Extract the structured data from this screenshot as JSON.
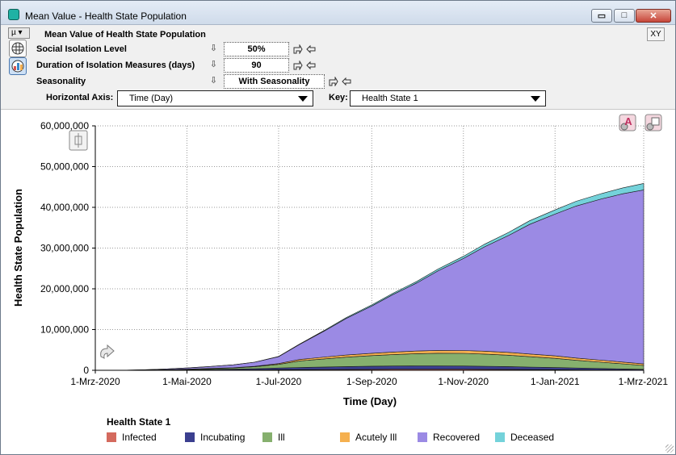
{
  "window": {
    "title": "Mean Value - Health State Population",
    "minimize_glyph": "▭",
    "maximize_glyph": "□",
    "close_glyph": "✕"
  },
  "controls": {
    "mu_label": "µ ▾",
    "title": "Mean Value of Health State Population",
    "xy_label": "XY",
    "down_arrow_glyph": "⇩",
    "rows": [
      {
        "label": "Social Isolation Level",
        "value": "50%"
      },
      {
        "label": "Duration of Isolation Measures   (days)",
        "value": "90"
      },
      {
        "label": "Seasonality",
        "value": "With Seasonality"
      }
    ],
    "horizontal_axis_label": "Horizontal Axis:",
    "horizontal_axis_value": "Time (Day)",
    "key_label": "Key:",
    "key_value": "Health State 1"
  },
  "icons": {
    "window": "app-icon",
    "table": "table-icon",
    "graph": "graph-icon",
    "row_mark": "pivot-icon",
    "row_swap": "swap-icon",
    "rotate": "rotate-icon",
    "chart_tools": "chart-settings-icon",
    "chart_copy": "chart-copy-icon",
    "axis_scroll": "axis-scroll-icon"
  },
  "chart_data": {
    "type": "area",
    "stacked": true,
    "xlabel": "Time (Day)",
    "ylabel": "Health State Population",
    "x_tick_labels": [
      "1-Mrz-2020",
      "1-Mai-2020",
      "1-Jul-2020",
      "1-Sep-2020",
      "1-Nov-2020",
      "1-Jan-2021",
      "1-Mrz-2021"
    ],
    "x_tick_dates": [
      "2020-03-01",
      "2020-05-01",
      "2020-07-01",
      "2020-09-01",
      "2020-11-01",
      "2021-01-01",
      "2021-03-01"
    ],
    "xlim": [
      "2020-03-01",
      "2021-03-01"
    ],
    "y_tick_labels": [
      "0",
      "10,000,000",
      "20,000,000",
      "30,000,000",
      "40,000,000",
      "50,000,000",
      "60,000,000"
    ],
    "ylim": [
      0,
      60000000
    ],
    "grid": true,
    "legend_title": "Health State 1",
    "legend_position": "bottom",
    "x": [
      "2020-03-01",
      "2020-03-15",
      "2020-04-01",
      "2020-04-15",
      "2020-05-01",
      "2020-05-15",
      "2020-06-01",
      "2020-06-15",
      "2020-07-01",
      "2020-07-15",
      "2020-08-01",
      "2020-08-15",
      "2020-09-01",
      "2020-09-15",
      "2020-10-01",
      "2020-10-15",
      "2020-11-01",
      "2020-11-15",
      "2020-12-01",
      "2020-12-15",
      "2021-01-01",
      "2021-01-15",
      "2021-02-01",
      "2021-02-15",
      "2021-03-01"
    ],
    "series": [
      {
        "name": "Infected",
        "color": "#d46a5e",
        "values": [
          0,
          0,
          10000,
          20000,
          40000,
          60000,
          80000,
          100000,
          150000,
          180000,
          200000,
          220000,
          240000,
          250000,
          260000,
          260000,
          250000,
          230000,
          210000,
          180000,
          150000,
          120000,
          90000,
          70000,
          50000
        ]
      },
      {
        "name": "Incubating",
        "color": "#3b3f8f",
        "values": [
          0,
          0,
          20000,
          50000,
          100000,
          150000,
          200000,
          280000,
          400000,
          520000,
          620000,
          700000,
          760000,
          800000,
          820000,
          820000,
          800000,
          760000,
          700000,
          620000,
          530000,
          430000,
          340000,
          260000,
          190000
        ]
      },
      {
        "name": "Ill",
        "color": "#86b06e",
        "values": [
          0,
          0,
          30000,
          60000,
          120000,
          200000,
          300000,
          500000,
          900000,
          1600000,
          2000000,
          2300000,
          2600000,
          2800000,
          3000000,
          3100000,
          3100000,
          3000000,
          2800000,
          2550000,
          2250000,
          1900000,
          1550000,
          1250000,
          950000
        ]
      },
      {
        "name": "Acutely Ill",
        "color": "#f5b04f",
        "values": [
          0,
          0,
          5000,
          10000,
          20000,
          40000,
          60000,
          100000,
          200000,
          350000,
          450000,
          520000,
          580000,
          620000,
          660000,
          690000,
          700000,
          700000,
          680000,
          650000,
          610000,
          560000,
          500000,
          440000,
          380000
        ]
      },
      {
        "name": "Recovered",
        "color": "#9b8ae4",
        "values": [
          0,
          0,
          50000,
          150000,
          300000,
          450000,
          700000,
          1000000,
          1700000,
          3700000,
          6500000,
          9000000,
          11600000,
          14100000,
          16700000,
          19500000,
          22600000,
          25600000,
          28700000,
          31800000,
          34800000,
          37300000,
          39600000,
          41300000,
          42700000
        ]
      },
      {
        "name": "Deceased",
        "color": "#74d2da",
        "values": [
          0,
          0,
          1000,
          3000,
          5000,
          10000,
          15000,
          20000,
          50000,
          100000,
          150000,
          210000,
          270000,
          330000,
          390000,
          460000,
          540000,
          640000,
          760000,
          890000,
          1030000,
          1170000,
          1310000,
          1450000,
          1600000
        ]
      }
    ]
  }
}
